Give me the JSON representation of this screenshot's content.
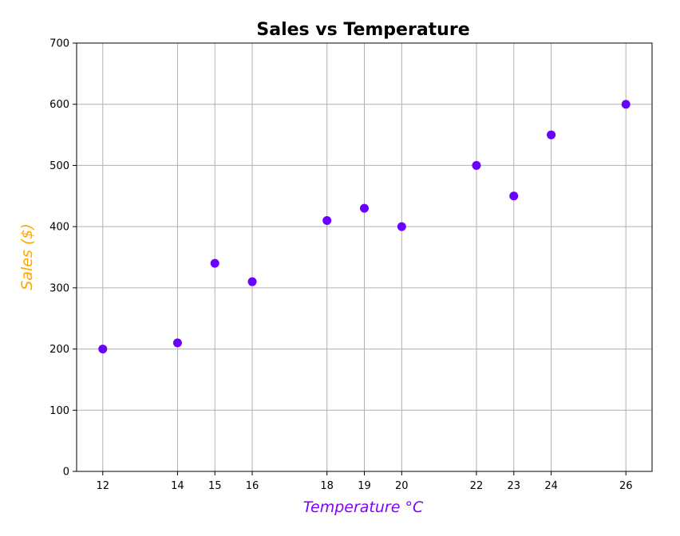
{
  "chart_data": {
    "type": "scatter",
    "title": "Sales vs Temperature",
    "xlabel": "Temperature °C",
    "ylabel": "Sales ($)",
    "x": [
      12,
      14,
      15,
      16,
      18,
      19,
      20,
      22,
      23,
      24,
      26
    ],
    "y": [
      200,
      210,
      340,
      310,
      410,
      430,
      400,
      500,
      450,
      550,
      600
    ],
    "xticks": [
      12,
      14,
      15,
      16,
      18,
      19,
      20,
      22,
      23,
      24,
      26
    ],
    "yticks": [
      0,
      100,
      200,
      300,
      400,
      500,
      600,
      700
    ],
    "xlim": [
      11.3,
      26.7
    ],
    "ylim": [
      0,
      700
    ],
    "grid": true,
    "colors": {
      "points": "#6a00ff",
      "xlabel": "#7f00ff",
      "ylabel": "#ffa500",
      "grid": "#b0b0b0",
      "axes": "#000000"
    }
  }
}
